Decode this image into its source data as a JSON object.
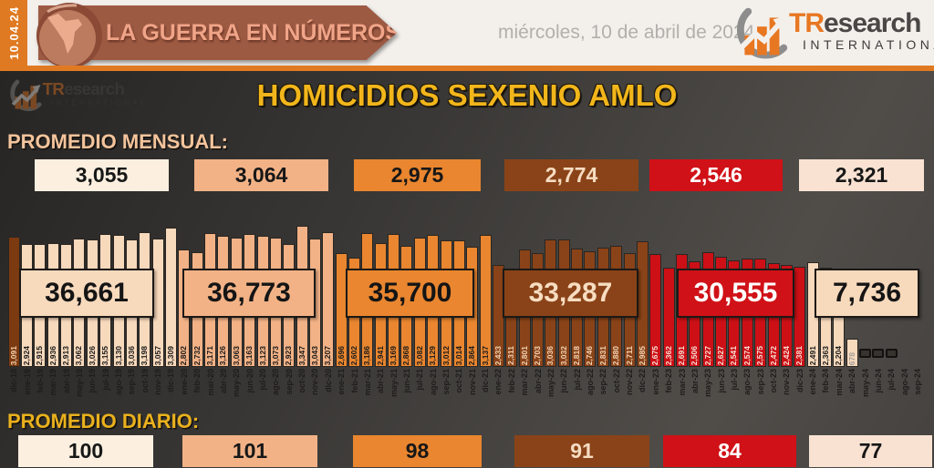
{
  "header": {
    "stamp_date": "10.04.24",
    "banner_title": "LA GUERRA EN NÚMEROS",
    "date_text": "miércoles, 10 de abril de 2024",
    "brand": {
      "tr": "TR",
      "rest": "esearch",
      "sub": "INTERNATIONAL"
    }
  },
  "title": "HOMICIDIOS SEXENIO AMLO",
  "promedio_mensual": {
    "label": "PROMEDIO MENSUAL:",
    "values": [
      "3,055",
      "3,064",
      "2,975",
      "2,774",
      "2,546",
      "2,321"
    ]
  },
  "promedio_diario": {
    "label": "PROMEDIO DIARIO:",
    "values": [
      "100",
      "101",
      "98",
      "91",
      "84",
      "77"
    ]
  },
  "palette": {
    "accent_orange": "#e07a22",
    "banner_brown": "#9d5a43",
    "banner_text_salmon": "#f0a488",
    "title_yellow": "#f2b61b",
    "mensual_label_peach": "#f4c49c",
    "diario_label_gold": "#eab11d",
    "brand_orange": "#e87722",
    "muted_label_color": "#a59f99",
    "bar_styles": {
      "18": {
        "bg": "#7c3a10",
        "fg": "#f2d0ad"
      },
      "19": {
        "bg": "#f7d9bc",
        "fg": "#1b1b1b"
      },
      "20": {
        "bg": "#f2b286",
        "fg": "#1b1b1b"
      },
      "21": {
        "bg": "#e9862f",
        "fg": "#1b1b1b"
      },
      "22": {
        "bg": "#8a4318",
        "fg": "#f2d3b3"
      },
      "23": {
        "bg": "#cc1016",
        "fg": "#f8ded4"
      },
      "24": {
        "bg": "#f7d9bc",
        "fg": "#1b1b1b"
      }
    }
  },
  "chart_data": {
    "type": "bar",
    "title": "HOMICIDIOS SEXENIO AMLO",
    "xlabel": "",
    "ylabel": "",
    "ylim": [
      0,
      3400
    ],
    "grid": false,
    "legend": false,
    "x_label_rotation": "vertical",
    "categories": [
      "dic-18",
      "ene-19",
      "feb-19",
      "mar-19",
      "abr-19",
      "may-19",
      "jun-19",
      "jul-19",
      "ago-19",
      "sep-19",
      "oct-19",
      "nov-19",
      "dic-19",
      "ene-20",
      "feb-20",
      "mar-20",
      "abr-20",
      "may-20",
      "jun-20",
      "jul-20",
      "ago-20",
      "sep-20",
      "oct-20",
      "nov-20",
      "dic-20",
      "ene-21",
      "feb-21",
      "mar-21",
      "abr-21",
      "may-21",
      "jun-21",
      "jul-21",
      "ago-21",
      "sep-21",
      "oct-21",
      "nov-21",
      "dic-21",
      "ene-22",
      "feb-22",
      "mar-22",
      "abr-22",
      "may-22",
      "jun-22",
      "jul-22",
      "ago-22",
      "sep-22",
      "oct-22",
      "nov-22",
      "dic-22",
      "ene-23",
      "feb-23",
      "mar-23",
      "abr-23",
      "may-23",
      "jun-23",
      "jul-23",
      "ago-23",
      "sep-23",
      "oct-23",
      "nov-23",
      "dic-23",
      "ene-24",
      "feb-24",
      "mar-24",
      "abr-24",
      "may-24",
      "jun-24",
      "jul-24",
      "ago-24",
      "sep-24"
    ],
    "values": [
      3091,
      2924,
      2915,
      2936,
      2913,
      3062,
      3026,
      3155,
      3130,
      3036,
      3198,
      3057,
      3309,
      2802,
      2732,
      3171,
      3126,
      3063,
      3163,
      3123,
      3073,
      2923,
      3347,
      3043,
      3207,
      2696,
      2602,
      3186,
      2941,
      3169,
      2868,
      3082,
      3129,
      3012,
      3014,
      2864,
      3137,
      2433,
      2311,
      2801,
      2703,
      3036,
      3032,
      2818,
      2746,
      2831,
      2880,
      2711,
      2985,
      2675,
      2362,
      2691,
      2506,
      2727,
      2627,
      2541,
      2574,
      2575,
      2472,
      2424,
      2381,
      2491,
      2363,
      2204,
      678,
      null,
      null,
      null,
      null,
      null
    ],
    "pending_markers": [
      "may-24",
      "jun-24",
      "jul-24"
    ],
    "muted_value_labels": [
      "abr-24"
    ],
    "year_totals": [
      {
        "period": "2019",
        "value": 36661,
        "label": "36,661"
      },
      {
        "period": "2020",
        "value": 36773,
        "label": "36,773"
      },
      {
        "period": "2021",
        "value": 35700,
        "label": "35,700"
      },
      {
        "period": "2022",
        "value": 33287,
        "label": "33,287"
      },
      {
        "period": "2023",
        "value": 30555,
        "label": "30,555"
      },
      {
        "period": "2024",
        "value": 7736,
        "label": "7,736"
      }
    ]
  }
}
